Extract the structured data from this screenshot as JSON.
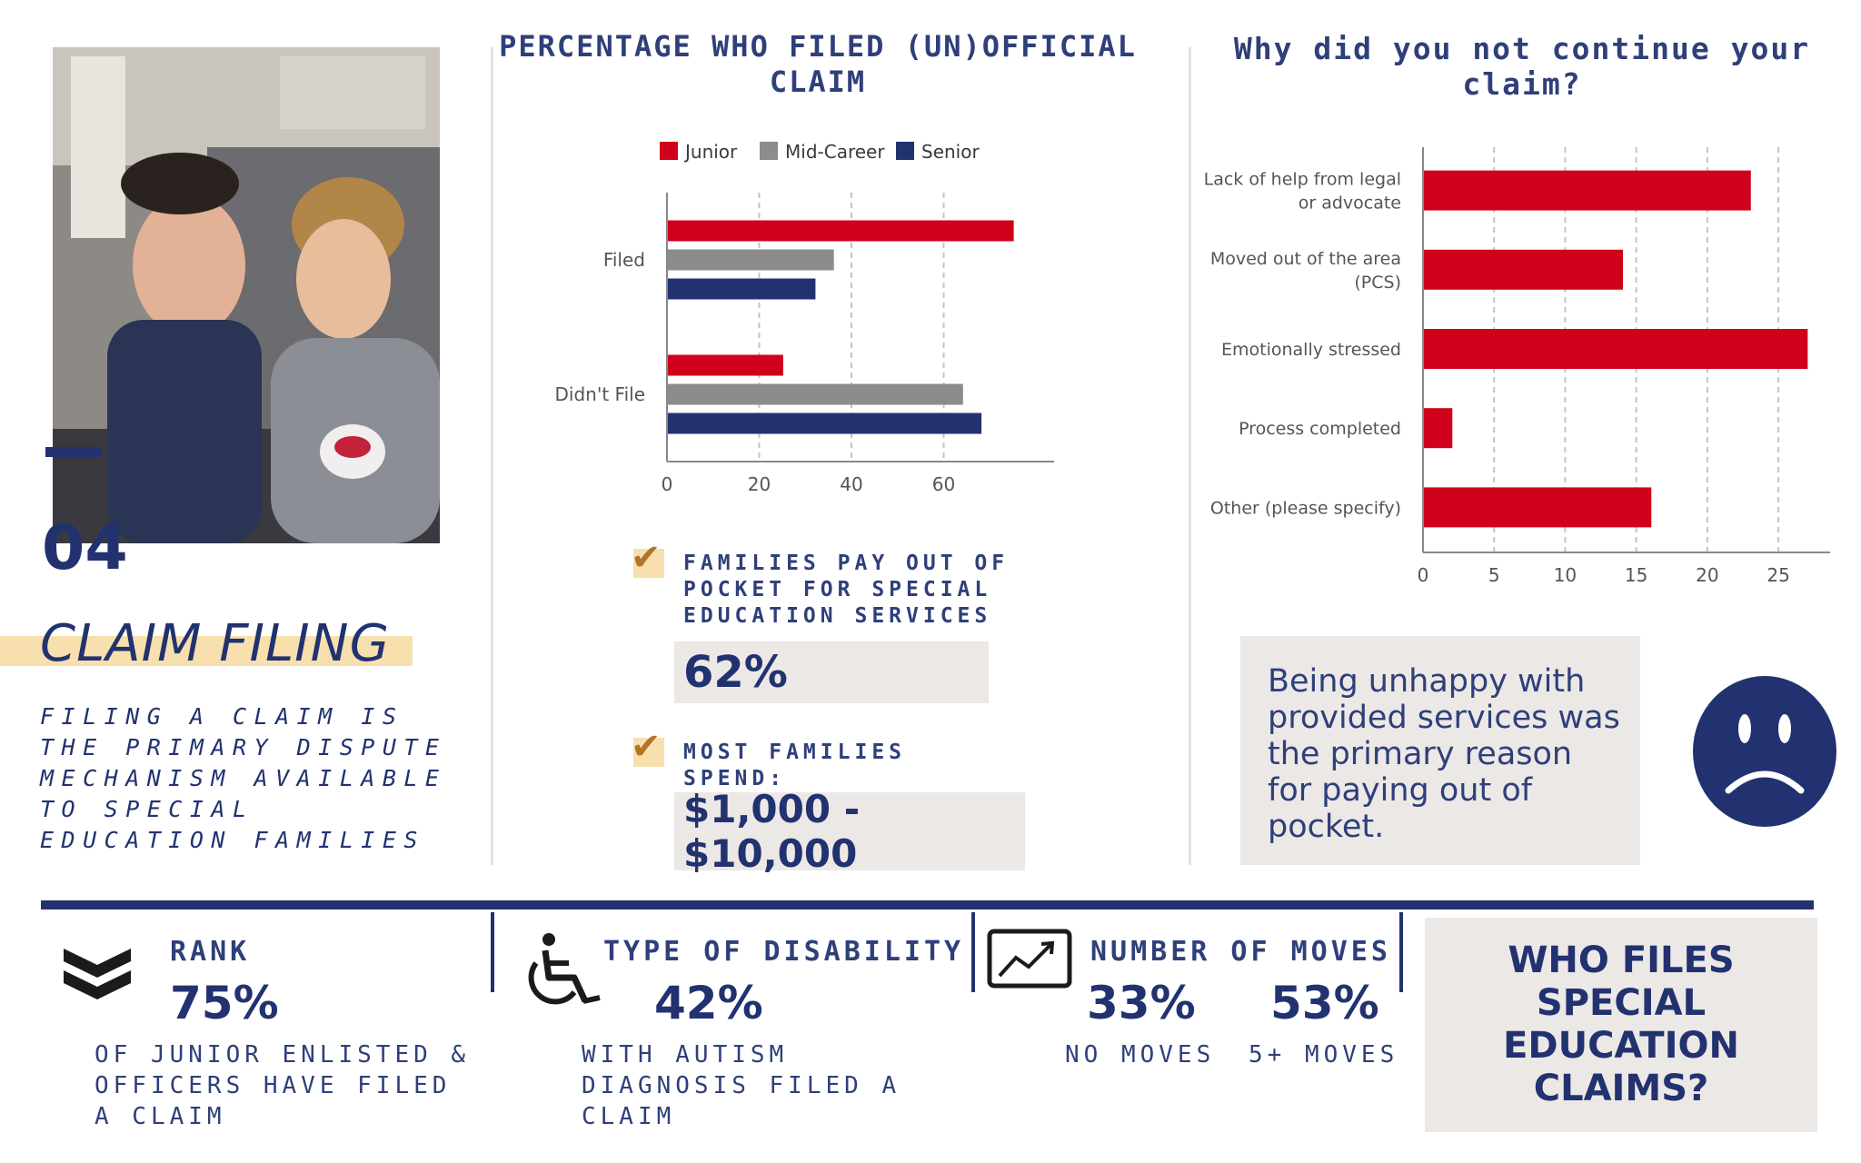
{
  "section": {
    "number": "04",
    "title": "CLAIM FILING",
    "description": "FILING A CLAIM IS THE PRIMARY DISPUTE MECHANISM AVAILABLE TO SPECIAL EDUCATION FAMILIES"
  },
  "chart_data": [
    {
      "type": "bar",
      "orientation": "horizontal",
      "title": "PERCENTAGE WHO FILED (UN)OFFICIAL CLAIM",
      "categories": [
        "Filed",
        "Didn't File"
      ],
      "series": [
        {
          "name": "Junior",
          "color": "#d0021b",
          "values": [
            75,
            25
          ]
        },
        {
          "name": "Mid-Career",
          "color": "#8c8c8c",
          "values": [
            36,
            64
          ]
        },
        {
          "name": "Senior",
          "color": "#223270",
          "values": [
            32,
            68
          ]
        }
      ],
      "xlim": [
        0,
        80
      ],
      "xticks": [
        0,
        20,
        40,
        60
      ],
      "grid": true,
      "legend": "top"
    },
    {
      "type": "bar",
      "orientation": "horizontal",
      "title": "Why did you not continue your claim?",
      "categories": [
        "Lack of help from legal or advocate",
        "Moved out of the area (PCS)",
        "Emotionally stressed",
        "Process completed",
        "Other (please specify)"
      ],
      "series": [
        {
          "color": "#d0021b",
          "values": [
            23,
            14,
            27,
            2,
            16
          ]
        }
      ],
      "xlim": [
        0,
        28
      ],
      "xticks": [
        0,
        5,
        10,
        15,
        20,
        25
      ],
      "grid": true
    }
  ],
  "stats": {
    "pay_label": "FAMILIES PAY OUT OF POCKET FOR SPECIAL EDUCATION SERVICES",
    "pay_value": "62%",
    "spend_label": "MOST FAMILIES SPEND:",
    "spend_value": "$1,000 - $10,000"
  },
  "note": "Being unhappy with provided services was the primary reason for paying out of pocket.",
  "bottom": {
    "rank": {
      "heading": "RANK",
      "value": "75%",
      "sub": "OF JUNIOR ENLISTED & OFFICERS HAVE FILED A CLAIM"
    },
    "disability": {
      "heading": "TYPE OF DISABILITY",
      "value": "42%",
      "sub": "WITH AUTISM DIAGNOSIS FILED A CLAIM"
    },
    "moves": {
      "heading": "NUMBER OF MOVES",
      "value1": "33%",
      "sub1": "NO MOVES",
      "value2": "53%",
      "sub2": "5+ MOVES"
    },
    "who": "WHO FILES SPECIAL EDUCATION CLAIMS?"
  },
  "icons": {
    "rank": "chevron-rank-icon",
    "disability": "wheelchair-icon",
    "moves": "trend-chart-icon",
    "check": "checkmark-icon",
    "sad": "sad-face-icon"
  },
  "colors": {
    "navy": "#223270",
    "red": "#d0021b",
    "grey": "#8c8c8c",
    "yellow": "#f7e0ad",
    "box": "#ebe8e6"
  }
}
